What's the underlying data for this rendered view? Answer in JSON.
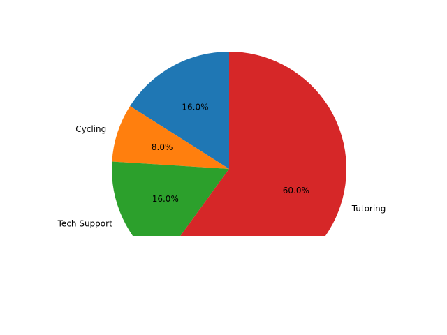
{
  "chart_data": {
    "type": "pie",
    "title": "",
    "slices": [
      {
        "label": "",
        "value": 16.0,
        "pct_label": "16.0%",
        "color": "#1f77b4"
      },
      {
        "label": "Cycling",
        "value": 8.0,
        "pct_label": "8.0%",
        "color": "#ff7f0e"
      },
      {
        "label": "Tech Support",
        "value": 16.0,
        "pct_label": "16.0%",
        "color": "#2ca02c"
      },
      {
        "label": "Tutoring",
        "value": 60.0,
        "pct_label": "60.0%",
        "color": "#d62728"
      }
    ],
    "start_angle_deg": 90,
    "direction": "counterclockwise",
    "clipped_bottom": true,
    "legend": "none"
  }
}
